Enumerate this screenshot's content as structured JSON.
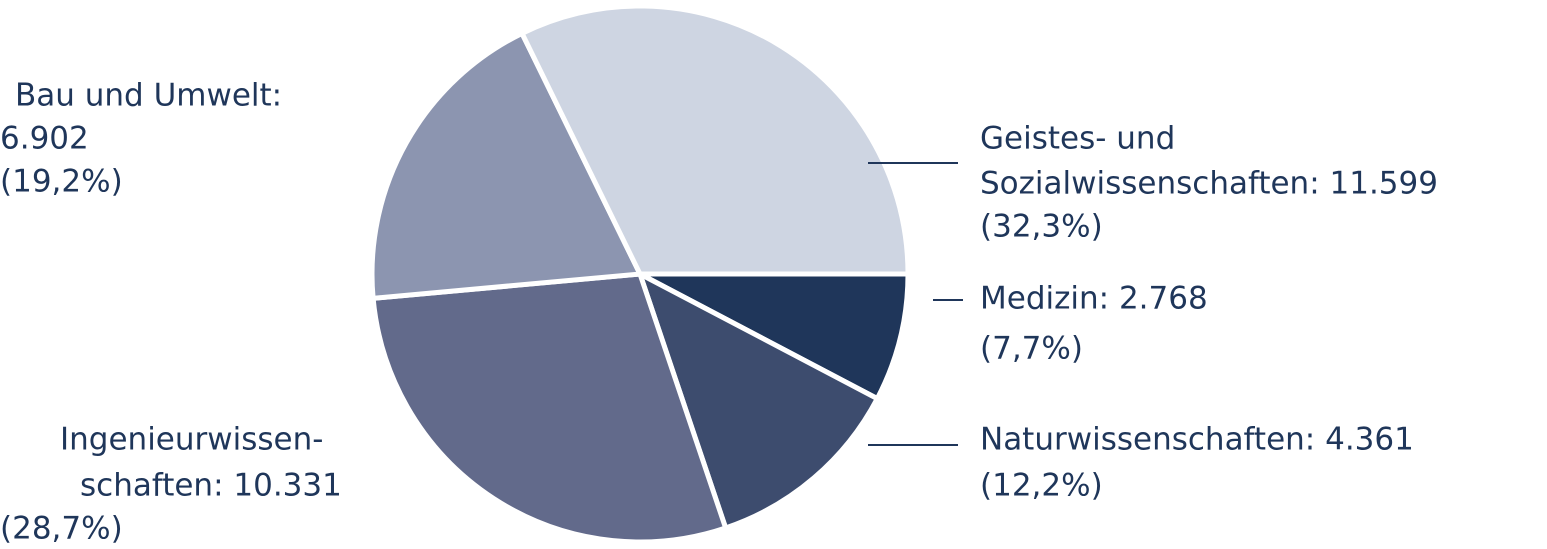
{
  "chart_data": {
    "type": "pie",
    "labels": [
      [
        "Medizin: 2.768",
        "(7,7%)"
      ],
      [
        "Naturwissenschaften: 4.361",
        "(12,2%)"
      ],
      [
        "Ingenieurwissen-",
        "schaften: 10.331",
        "(28,7%)"
      ],
      [
        "Bau und Umwelt:",
        "6.902",
        "(19,2%)"
      ],
      [
        "Geistes- und",
        "Sozialwissenschaften: 11.599",
        "(32,3%)"
      ]
    ],
    "values": [
      2768,
      4361,
      10331,
      6902,
      11599
    ],
    "percents": [
      7.7,
      12.2,
      28.7,
      19.2,
      32.3
    ],
    "colors": [
      "#1f365a",
      "#3d4c6e",
      "#626a8b",
      "#8c95b0",
      "#ced5e2"
    ],
    "start": "east",
    "direction": "clockwise"
  }
}
